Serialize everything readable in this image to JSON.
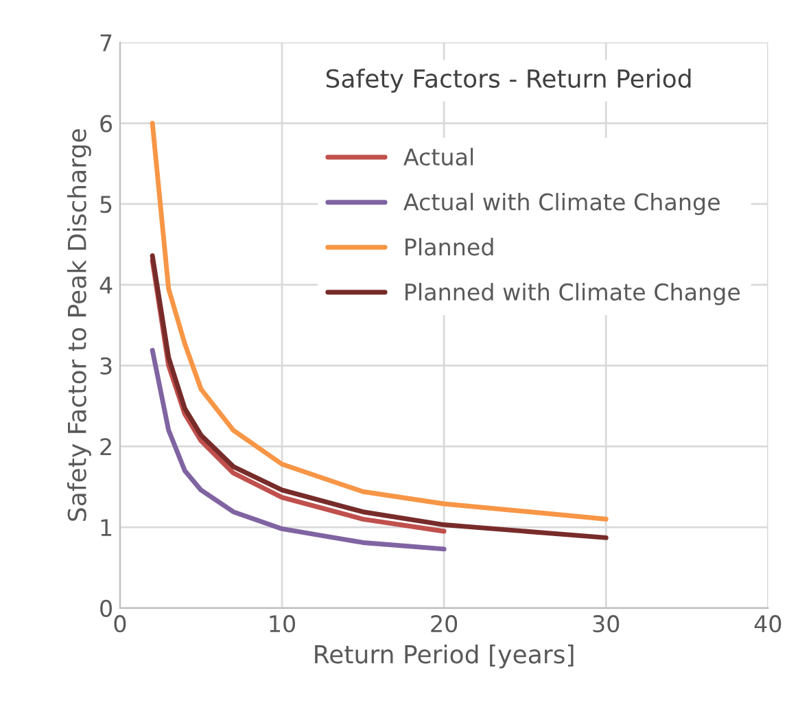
{
  "chart_data": {
    "type": "line",
    "title": "Safety Factors - Return Period",
    "xlabel": "Return Period [years]",
    "ylabel": "Safety Factor to Peak Discharge",
    "x": [
      2,
      3,
      4,
      5,
      7,
      10,
      15,
      20
    ],
    "series": [
      {
        "name": "Actual",
        "color": "#c0504d",
        "values": [
          4.3,
          3.0,
          2.4,
          2.07,
          1.67,
          1.37,
          1.1,
          0.95
        ]
      },
      {
        "name": "Actual with Climate Change",
        "color": "#8064a2",
        "values": [
          3.19,
          2.2,
          1.7,
          1.46,
          1.19,
          0.98,
          0.81,
          0.73
        ]
      },
      {
        "name": "Planned",
        "color": "#f79646",
        "x": [
          2,
          3,
          4,
          5,
          7,
          10,
          15,
          20,
          30
        ],
        "values": [
          6.0,
          3.95,
          3.27,
          2.71,
          2.2,
          1.78,
          1.44,
          1.29,
          1.1
        ]
      },
      {
        "name": "Planned with Climate Change",
        "color": "#772c2a",
        "x": [
          2,
          3,
          4,
          5,
          7,
          10,
          15,
          20,
          30
        ],
        "values": [
          4.36,
          3.1,
          2.47,
          2.14,
          1.75,
          1.46,
          1.19,
          1.03,
          0.87
        ]
      }
    ],
    "xlim": [
      0,
      40
    ],
    "xticks": [
      0,
      10,
      20,
      30,
      40
    ],
    "ylim": [
      0,
      7
    ],
    "yticks": [
      0,
      1,
      2,
      3,
      4,
      5,
      6,
      7
    ],
    "grid": true,
    "legend": "top right",
    "marker": "none",
    "line_style": "solid"
  }
}
